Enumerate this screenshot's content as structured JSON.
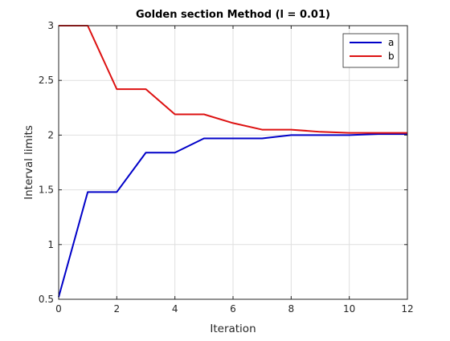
{
  "chart_data": {
    "type": "line",
    "title": "Golden section Method (l = 0.01)",
    "xlabel": "Iteration",
    "ylabel": "Interval limits",
    "xlim": [
      0,
      12
    ],
    "ylim": [
      0.5,
      3
    ],
    "xticks": [
      0,
      2,
      4,
      6,
      8,
      10,
      12
    ],
    "yticks": [
      0.5,
      1,
      1.5,
      2,
      2.5,
      3
    ],
    "xtick_labels": [
      "0",
      "2",
      "4",
      "6",
      "8",
      "10",
      "12"
    ],
    "ytick_labels": [
      "0.5",
      "1",
      "1.5",
      "2",
      "2.5",
      "3"
    ],
    "grid": true,
    "legend_position": "top-right",
    "x": [
      0,
      1,
      2,
      3,
      4,
      5,
      6,
      7,
      8,
      9,
      10,
      11,
      12
    ],
    "series": [
      {
        "name": "a",
        "color": "#0000c8",
        "values": [
          0.52,
          1.48,
          1.48,
          1.84,
          1.84,
          1.97,
          1.97,
          1.97,
          2.0,
          2.0,
          2.0,
          2.01,
          2.01
        ]
      },
      {
        "name": "b",
        "color": "#dd1111",
        "values": [
          3.0,
          3.0,
          2.42,
          2.42,
          2.19,
          2.19,
          2.11,
          2.05,
          2.05,
          2.03,
          2.02,
          2.02,
          2.02
        ]
      }
    ]
  }
}
